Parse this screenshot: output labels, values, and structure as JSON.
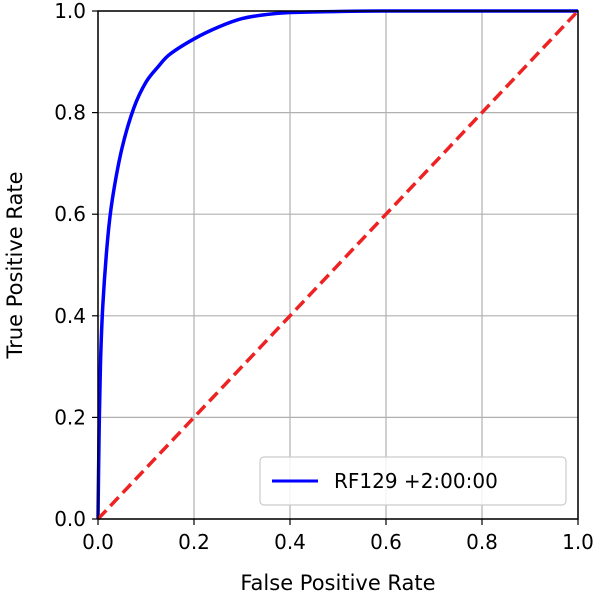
{
  "chart_data": {
    "type": "line",
    "title": "",
    "xlabel": "False Positive Rate",
    "ylabel": "True Positive Rate",
    "xlim": [
      0.0,
      1.0
    ],
    "ylim": [
      0.0,
      1.0
    ],
    "xticks": [
      "0.0",
      "0.2",
      "0.4",
      "0.6",
      "0.8",
      "1.0"
    ],
    "yticks": [
      "0.0",
      "0.2",
      "0.4",
      "0.6",
      "0.8",
      "1.0"
    ],
    "grid": true,
    "legend_position": "lower-right",
    "series": [
      {
        "name": "RF129 +2:00:00",
        "color": "#0000ff",
        "style": "solid",
        "x": [
          0.0,
          0.002,
          0.005,
          0.01,
          0.02,
          0.03,
          0.05,
          0.075,
          0.1,
          0.125,
          0.15,
          0.2,
          0.25,
          0.3,
          0.35,
          0.4,
          0.5,
          0.6,
          0.8,
          1.0
        ],
        "y": [
          0.0,
          0.15,
          0.3,
          0.42,
          0.55,
          0.63,
          0.73,
          0.81,
          0.86,
          0.89,
          0.915,
          0.945,
          0.968,
          0.985,
          0.993,
          0.997,
          0.999,
          1.0,
          1.0,
          1.0
        ]
      },
      {
        "name": "",
        "color": "#ee2222",
        "style": "dashed",
        "x": [
          0.0,
          1.0
        ],
        "y": [
          0.0,
          1.0
        ]
      }
    ]
  }
}
